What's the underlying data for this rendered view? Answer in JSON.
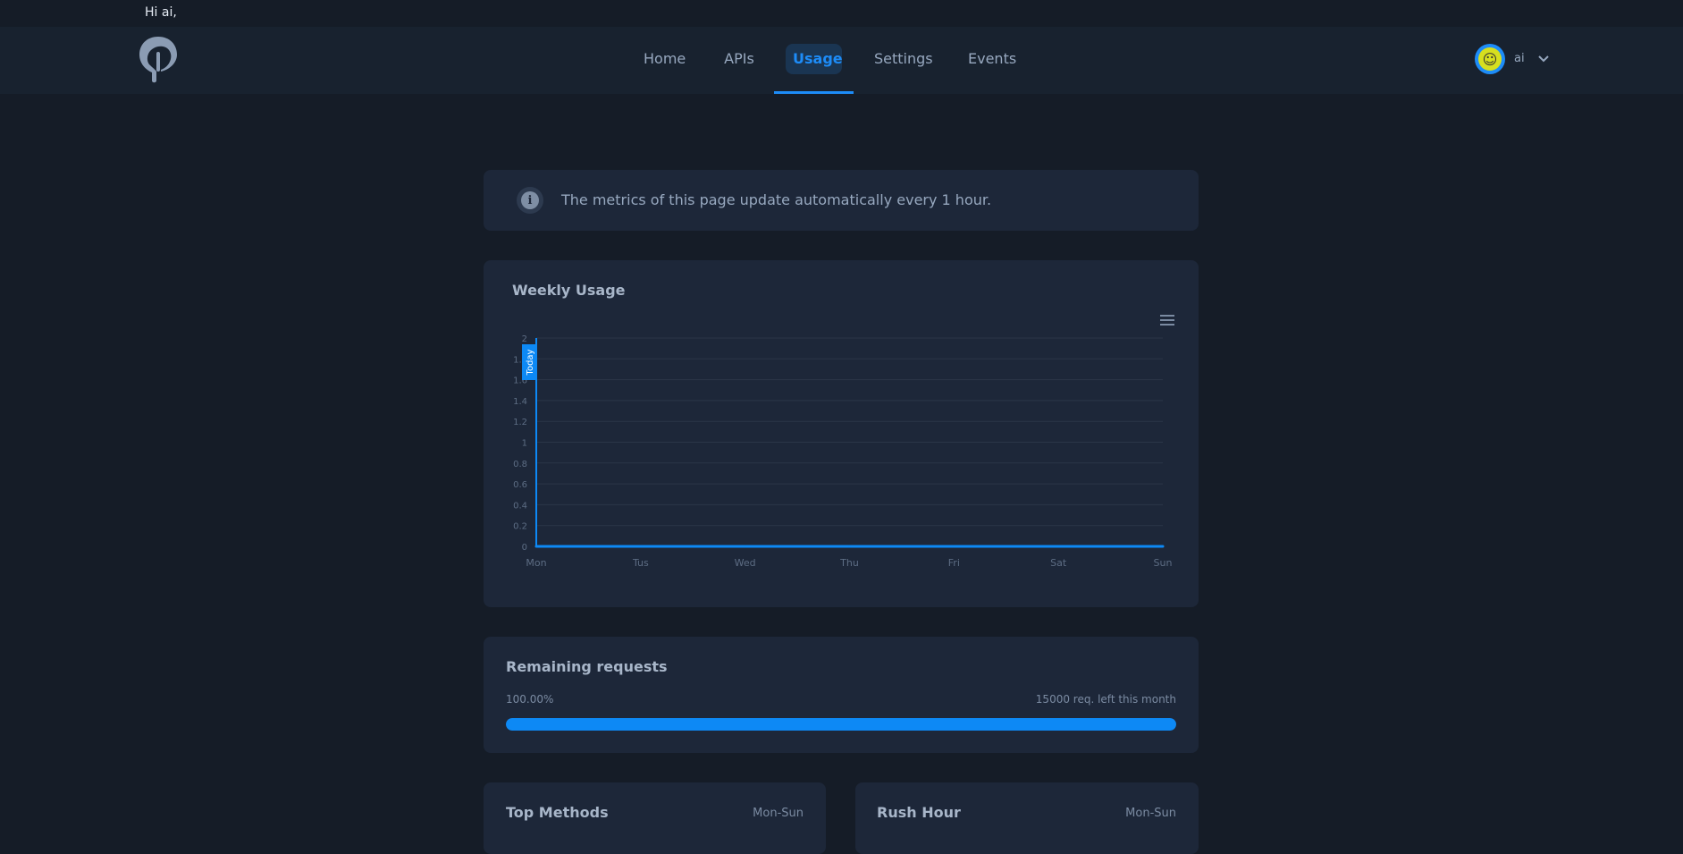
{
  "greeting": "Hi ai,",
  "nav": {
    "items": [
      {
        "label": "Home"
      },
      {
        "label": "APIs"
      },
      {
        "label": "Usage"
      },
      {
        "label": "Settings"
      },
      {
        "label": "Events"
      }
    ],
    "active": "Usage"
  },
  "user": {
    "name": "ai",
    "avatar_icon": "avatar-icon",
    "menu_icon": "chevron-down-icon"
  },
  "info": {
    "icon": "info-icon",
    "text": "The metrics of this page update automatically every 1 hour."
  },
  "weekly_usage": {
    "title": "Weekly Usage",
    "menu_icon": "hamburger-menu-icon"
  },
  "chart_data": {
    "type": "line",
    "x": [
      "Mon",
      "Tus",
      "Wed",
      "Thu",
      "Fri",
      "Sat",
      "Sun"
    ],
    "series": [
      {
        "values": [
          0,
          0,
          0,
          0,
          0,
          0,
          0
        ]
      }
    ],
    "ylim": [
      0,
      2
    ],
    "yticks": [
      "0",
      "0.2",
      "0.4",
      "0.6",
      "0.8",
      "1",
      "1.2",
      "1.4",
      "1.6",
      "1.8",
      "2"
    ],
    "grid": true,
    "annotations": [
      {
        "x": "Mon",
        "label": "Today"
      }
    ],
    "colors": {
      "series": "#0d89f5",
      "annotation": "#0d89f5"
    }
  },
  "remaining": {
    "title": "Remaining requests",
    "percent_label": "100.00%",
    "left_label": "15000 req. left this month",
    "fraction": 1.0
  },
  "top_methods": {
    "title": "Top Methods",
    "range": "Mon-Sun"
  },
  "rush_hour": {
    "title": "Rush Hour",
    "range": "Mon-Sun"
  },
  "colors": {
    "accent": "#1d8cf8",
    "background": "#151c27",
    "card": "#1d2739"
  }
}
